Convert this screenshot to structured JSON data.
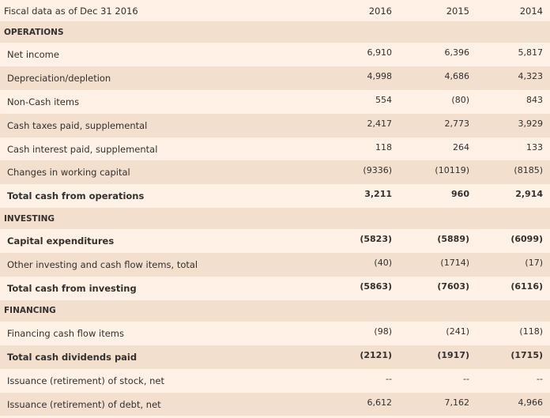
{
  "header": {
    "label": "Fiscal data as of Dec 31 2016",
    "years": [
      "2016",
      "2015",
      "2014"
    ]
  },
  "sections": [
    {
      "title": "OPERATIONS",
      "rows": [
        {
          "label": "Net income",
          "values": [
            "6,910",
            "6,396",
            "5,817"
          ],
          "bold": false
        },
        {
          "label": "Depreciation/depletion",
          "values": [
            "4,998",
            "4,686",
            "4,323"
          ],
          "bold": false
        },
        {
          "label": "Non-Cash items",
          "values": [
            "554",
            "(80)",
            "843"
          ],
          "bold": false
        },
        {
          "label": "Cash taxes paid, supplemental",
          "values": [
            "2,417",
            "2,773",
            "3,929"
          ],
          "bold": false
        },
        {
          "label": "Cash interest paid, supplemental",
          "values": [
            "118",
            "264",
            "133"
          ],
          "bold": false
        },
        {
          "label": "Changes in working capital",
          "values": [
            "(9336)",
            "(10119)",
            "(8185)"
          ],
          "bold": false
        },
        {
          "label": "Total cash from operations",
          "values": [
            "3,211",
            "960",
            "2,914"
          ],
          "bold": true
        }
      ]
    },
    {
      "title": "INVESTING",
      "rows": [
        {
          "label": "Capital expenditures",
          "values": [
            "(5823)",
            "(5889)",
            "(6099)"
          ],
          "bold": true
        },
        {
          "label": "Other investing and cash flow items, total",
          "values": [
            "(40)",
            "(1714)",
            "(17)"
          ],
          "bold": false
        },
        {
          "label": "Total cash from investing",
          "values": [
            "(5863)",
            "(7603)",
            "(6116)"
          ],
          "bold": true
        }
      ]
    },
    {
      "title": "FINANCING",
      "rows": [
        {
          "label": "Financing cash flow items",
          "values": [
            "(98)",
            "(241)",
            "(118)"
          ],
          "bold": false
        },
        {
          "label": "Total cash dividends paid",
          "values": [
            "(2121)",
            "(1917)",
            "(1715)"
          ],
          "bold": true
        },
        {
          "label": "Issuance (retirement) of stock, net",
          "values": [
            "--",
            "--",
            "--"
          ],
          "bold": false
        },
        {
          "label": "Issuance (retirement) of debt, net",
          "values": [
            "6,612",
            "7,162",
            "4,966"
          ],
          "bold": false
        }
      ]
    }
  ]
}
